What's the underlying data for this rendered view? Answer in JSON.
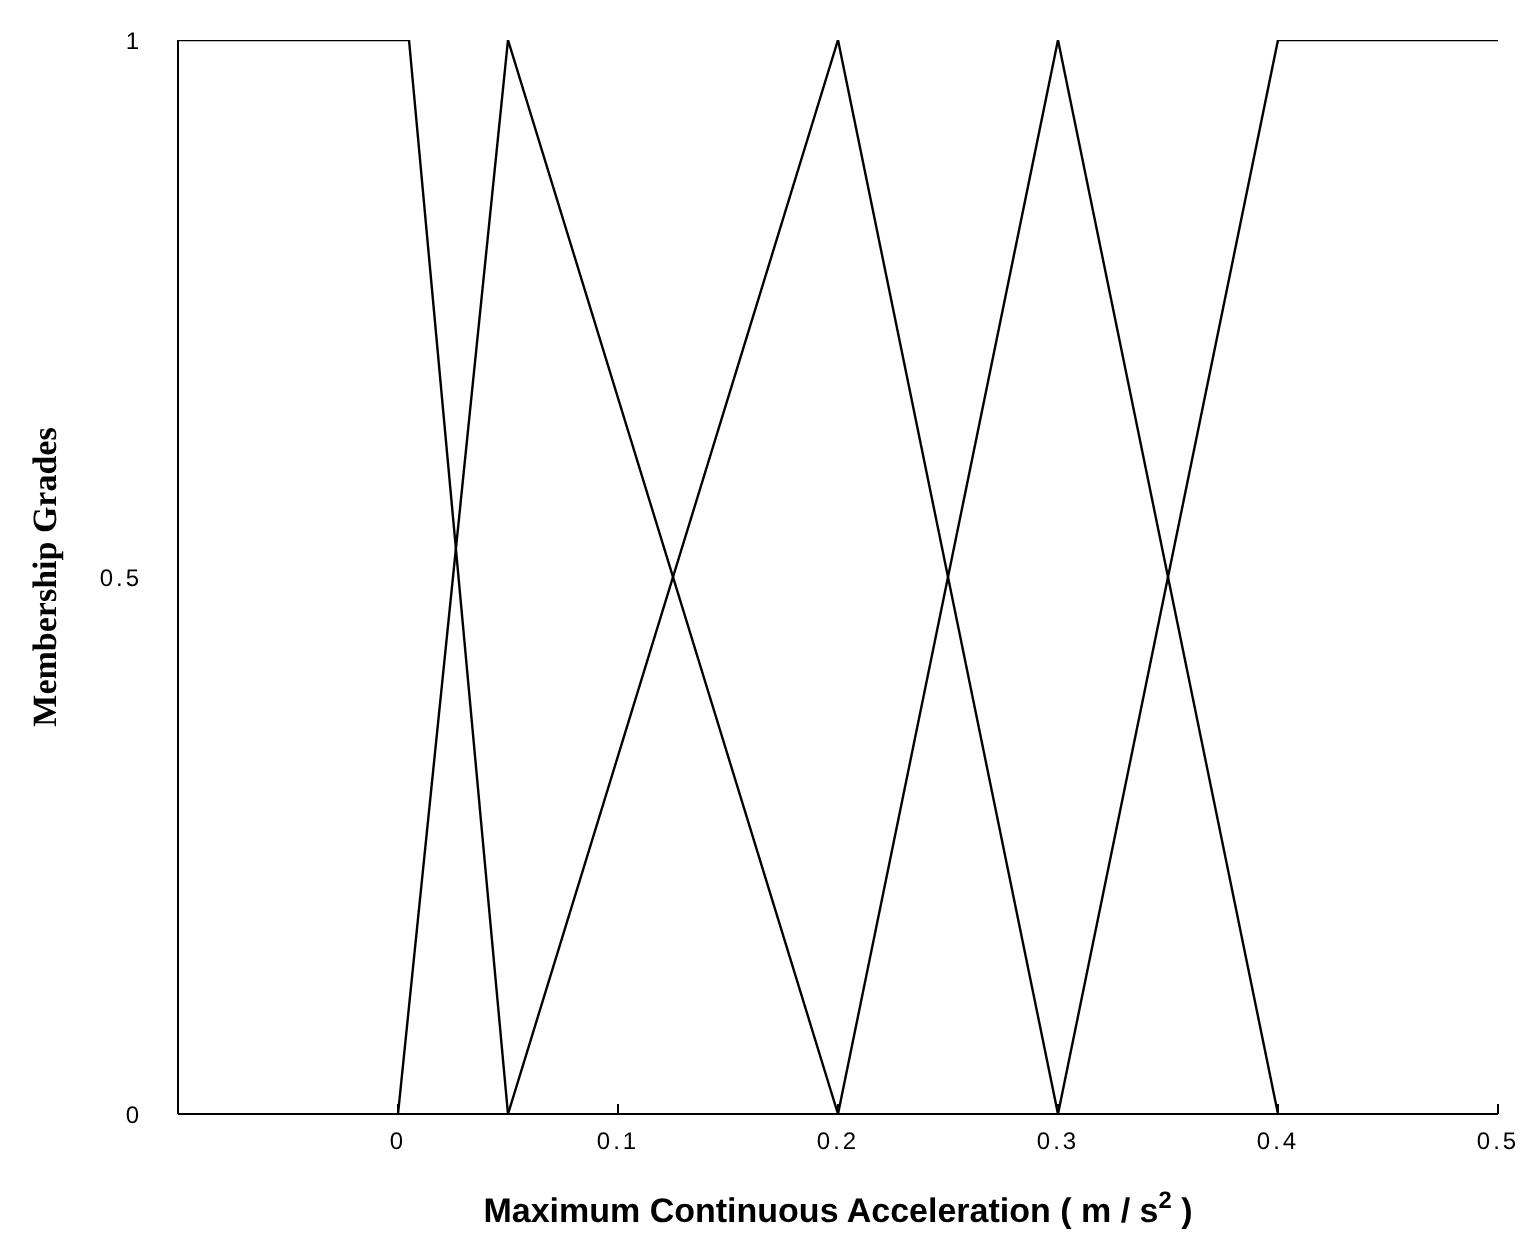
{
  "chart_data": {
    "type": "line",
    "xlabel": "Maximum Continuous Acceleration ( m / s$^{2}$ )",
    "ylabel": "Membership Grades",
    "xlim": [
      -0.1,
      0.5
    ],
    "xticks": [
      0,
      0.1,
      0.2,
      0.3,
      0.4,
      0.5
    ],
    "ylim": [
      0,
      1
    ],
    "yticks": [
      0,
      0.5,
      1
    ],
    "marker": "none",
    "line_style": "solid",
    "series": [
      {
        "color": "#000000",
        "x": [
          -0.1,
          0.005,
          0.05
        ],
        "values": [
          1,
          1,
          0
        ]
      },
      {
        "color": "#000000",
        "x": [
          0,
          0.05,
          0.2
        ],
        "values": [
          0,
          1,
          0
        ]
      },
      {
        "color": "#000000",
        "x": [
          0.05,
          0.2,
          0.3
        ],
        "values": [
          0,
          1,
          0
        ]
      },
      {
        "color": "#000000",
        "x": [
          0.2,
          0.3,
          0.4
        ],
        "values": [
          0,
          1,
          0
        ]
      },
      {
        "color": "#000000",
        "x": [
          0.3,
          0.4,
          0.5
        ],
        "values": [
          0,
          1,
          1
        ]
      }
    ]
  }
}
